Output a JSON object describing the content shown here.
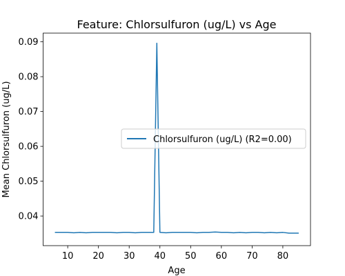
{
  "chart_data": {
    "type": "line",
    "title": "Feature: Chlorsulfuron (ug/L) vs Age",
    "xlabel": "Age",
    "ylabel": "Mean Chlorsulfuron (ug/L)",
    "xlim": [
      2,
      89
    ],
    "ylim": [
      0.0315,
      0.0925
    ],
    "xticks": [
      10,
      20,
      30,
      40,
      50,
      60,
      70,
      80
    ],
    "yticks": [
      0.04,
      0.05,
      0.06,
      0.07,
      0.08,
      0.09
    ],
    "ytick_labels": [
      "0.04",
      "0.05",
      "0.06",
      "0.07",
      "0.08",
      "0.09"
    ],
    "grid": false,
    "legend_position": "center-right",
    "series": [
      {
        "name": "Chlorsulfuron (ug/L) (R2=0.00)",
        "color": "#1f77b4",
        "x": [
          6,
          8,
          10,
          12,
          14,
          16,
          18,
          20,
          22,
          24,
          26,
          28,
          30,
          32,
          34,
          36,
          38,
          39,
          40,
          42,
          44,
          46,
          48,
          50,
          52,
          54,
          56,
          58,
          60,
          62,
          64,
          66,
          68,
          70,
          72,
          74,
          76,
          78,
          80,
          82,
          85
        ],
        "y": [
          0.0353,
          0.0353,
          0.0353,
          0.0352,
          0.0353,
          0.0352,
          0.0353,
          0.0353,
          0.0353,
          0.0353,
          0.0352,
          0.0353,
          0.0353,
          0.0352,
          0.0353,
          0.0353,
          0.0353,
          0.0896,
          0.0353,
          0.0352,
          0.0353,
          0.0353,
          0.0353,
          0.0353,
          0.0352,
          0.0353,
          0.0353,
          0.0354,
          0.0353,
          0.0353,
          0.0352,
          0.0353,
          0.0352,
          0.0353,
          0.0353,
          0.0352,
          0.0353,
          0.0352,
          0.0353,
          0.0351,
          0.0351
        ]
      }
    ]
  }
}
